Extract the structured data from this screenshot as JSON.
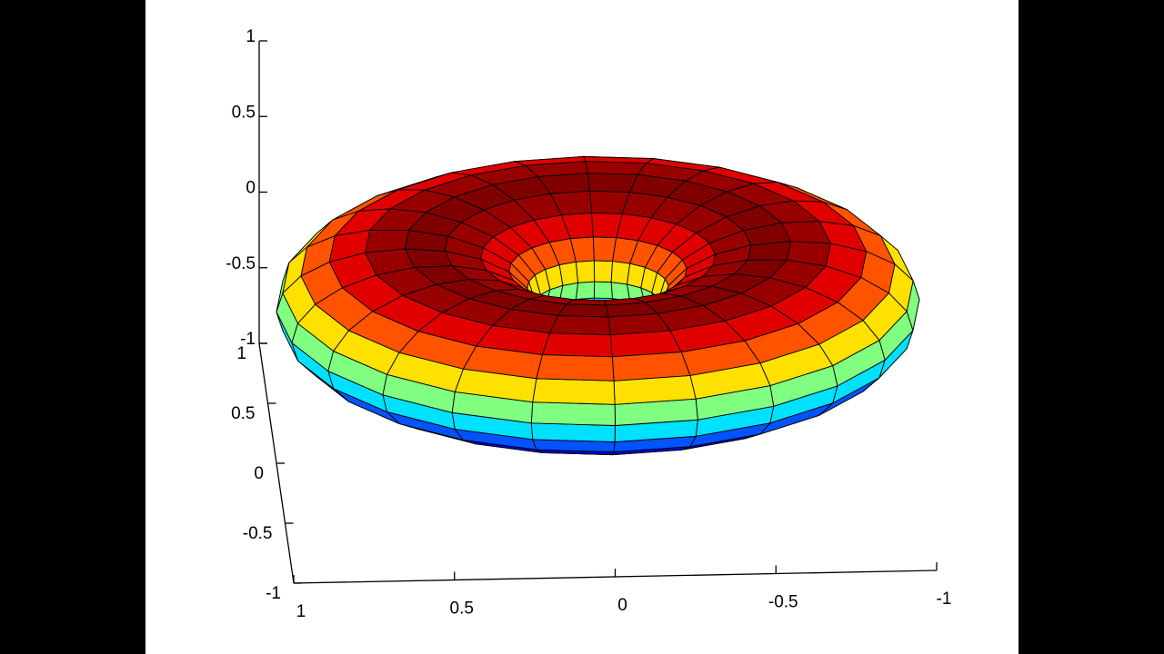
{
  "chart_data": {
    "type": "surface3d",
    "colormap": "jet",
    "torus": {
      "R": 0.6,
      "r": 0.4,
      "n_around": 24,
      "n_tube": 20
    },
    "xlim": [
      -1,
      1
    ],
    "ylim": [
      -1,
      1
    ],
    "zlim": [
      -1,
      1
    ],
    "xticks": [
      -1,
      -0.5,
      0,
      0.5,
      1
    ],
    "yticks": [
      -1,
      -0.5,
      0,
      0.5,
      1
    ],
    "zticks": [
      -1,
      -0.5,
      0,
      0.5,
      1
    ]
  }
}
